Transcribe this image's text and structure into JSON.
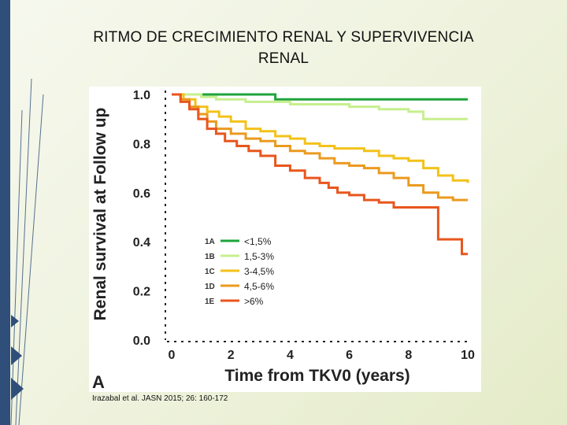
{
  "slide": {
    "title_line1": "RITMO DE CRECIMIENTO RENAL Y SUPERVIVENCIA",
    "title_line2": "RENAL",
    "citation": "Irazabal et al. JASN 2015; 26: 160-172",
    "accent_color": "#2f4f7a"
  },
  "chart_data": {
    "type": "line",
    "subtype": "step (Kaplan-Meier)",
    "panel_label": "A",
    "xlabel": "Time from TKV0 (years)",
    "ylabel": "Renal survival at Follow up",
    "xlim": [
      0,
      10
    ],
    "ylim": [
      0,
      1
    ],
    "xticks": [
      "0",
      "2",
      "4",
      "6",
      "8",
      "10"
    ],
    "yticks": [
      "0.0",
      "0.2",
      "0.4",
      "0.6",
      "0.8",
      "1.0"
    ],
    "grid": false,
    "legend_position": "center-left",
    "series": [
      {
        "name": "<1,5%",
        "code": "1A",
        "color": "#1fa33c",
        "x": [
          0,
          3.5,
          3.5,
          10
        ],
        "y": [
          1.0,
          1.0,
          0.98,
          0.98
        ]
      },
      {
        "name": "1,5-3%",
        "code": "1B",
        "color": "#c6ef8e",
        "x": [
          0,
          1.0,
          1.5,
          2.0,
          2.5,
          3.0,
          4.0,
          5.0,
          6.0,
          7.0,
          8.0,
          8.5,
          10.0
        ],
        "y": [
          1.0,
          0.99,
          0.98,
          0.98,
          0.97,
          0.97,
          0.96,
          0.96,
          0.95,
          0.94,
          0.93,
          0.9,
          0.9
        ]
      },
      {
        "name": "3-4,5%",
        "code": "1C",
        "color": "#f3c21a",
        "x": [
          0,
          0.4,
          0.8,
          1.2,
          1.6,
          2.0,
          2.5,
          3.0,
          3.5,
          4.0,
          4.5,
          5.0,
          5.5,
          6.0,
          6.5,
          7.0,
          7.5,
          8.0,
          8.5,
          9.0,
          9.5,
          10.0
        ],
        "y": [
          1.0,
          0.98,
          0.95,
          0.93,
          0.91,
          0.89,
          0.86,
          0.85,
          0.83,
          0.82,
          0.8,
          0.79,
          0.78,
          0.78,
          0.77,
          0.75,
          0.74,
          0.73,
          0.7,
          0.67,
          0.65,
          0.64
        ]
      },
      {
        "name": "4,5-6%",
        "code": "1D",
        "color": "#eb9a1f",
        "x": [
          0,
          0.3,
          0.6,
          0.9,
          1.2,
          1.5,
          2.0,
          2.5,
          3.0,
          3.5,
          4.0,
          4.5,
          5.0,
          5.5,
          6.0,
          6.5,
          7.0,
          7.5,
          8.0,
          8.5,
          9.0,
          9.5,
          10.0
        ],
        "y": [
          1.0,
          0.98,
          0.95,
          0.92,
          0.89,
          0.86,
          0.84,
          0.82,
          0.81,
          0.79,
          0.77,
          0.76,
          0.74,
          0.72,
          0.71,
          0.7,
          0.68,
          0.66,
          0.63,
          0.6,
          0.58,
          0.57,
          0.57
        ]
      },
      {
        "name": ">6%",
        "code": "1E",
        "color": "#e8561d",
        "x": [
          0,
          0.3,
          0.6,
          0.9,
          1.2,
          1.5,
          1.8,
          2.2,
          2.6,
          3.0,
          3.5,
          4.0,
          4.5,
          5.0,
          5.3,
          5.6,
          6.0,
          6.5,
          7.0,
          7.5,
          8.0,
          8.5,
          8.9,
          9.0,
          9.5,
          9.8,
          10.0
        ],
        "y": [
          1.0,
          0.97,
          0.94,
          0.9,
          0.86,
          0.84,
          0.81,
          0.79,
          0.77,
          0.75,
          0.71,
          0.69,
          0.66,
          0.64,
          0.62,
          0.6,
          0.59,
          0.57,
          0.56,
          0.54,
          0.54,
          0.54,
          0.54,
          0.41,
          0.41,
          0.35,
          0.35
        ]
      }
    ]
  }
}
